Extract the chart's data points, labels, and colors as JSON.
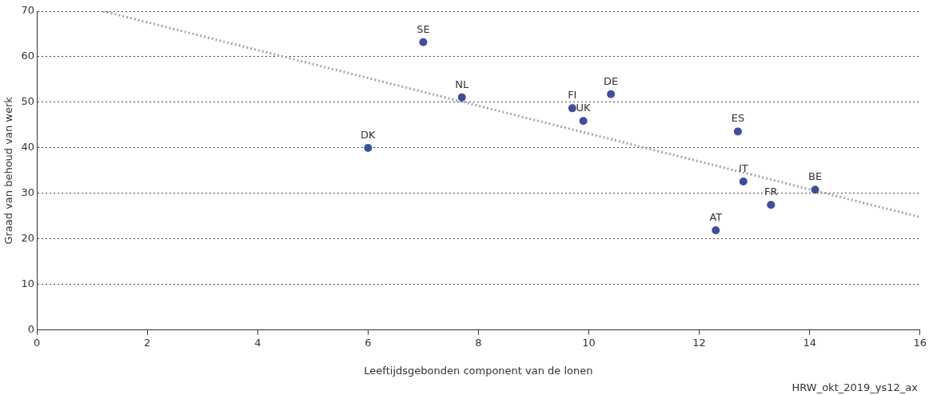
{
  "chart_data": {
    "type": "scatter",
    "xlabel": "Leeftijdsgebonden component van de lonen",
    "ylabel": "Graad van behoud van werk",
    "xlim": [
      0,
      16
    ],
    "xticks": [
      0,
      2,
      4,
      6,
      8,
      10,
      12,
      14,
      16
    ],
    "ylim": [
      0,
      70
    ],
    "yticks": [
      0,
      10,
      20,
      30,
      40,
      50,
      60,
      70
    ],
    "grid": "y",
    "legend": false,
    "marker": "circle",
    "series": [
      {
        "color": "#3c4f9b",
        "x": [
          7.0,
          7.7,
          6.0,
          9.7,
          9.9,
          10.4,
          12.7,
          12.8,
          14.1,
          13.3,
          12.3
        ],
        "values": [
          63.2,
          51.1,
          40.0,
          48.7,
          45.9,
          51.8,
          43.6,
          32.6,
          30.8,
          27.5,
          21.9
        ]
      },
      {
        "type": "line",
        "color": "#a6a6a6",
        "line_style": "dotted",
        "marker": "none",
        "x": [
          1.2,
          16
        ],
        "values": [
          70,
          24.8
        ]
      }
    ],
    "annotations": [
      {
        "text": "SE",
        "x": 7.0,
        "y": 63.2
      },
      {
        "text": "NL",
        "x": 7.7,
        "y": 51.1
      },
      {
        "text": "DK",
        "x": 6.0,
        "y": 40.0
      },
      {
        "text": "FI",
        "x": 9.7,
        "y": 48.7
      },
      {
        "text": "UK",
        "x": 9.9,
        "y": 45.9
      },
      {
        "text": "DE",
        "x": 10.4,
        "y": 51.8
      },
      {
        "text": "ES",
        "x": 12.7,
        "y": 43.6
      },
      {
        "text": "IT",
        "x": 12.8,
        "y": 32.6
      },
      {
        "text": "BE",
        "x": 14.1,
        "y": 30.8
      },
      {
        "text": "FR",
        "x": 13.3,
        "y": 27.5
      },
      {
        "text": "AT",
        "x": 12.3,
        "y": 21.9
      },
      "HRW_okt_2019_ys12_ax"
    ]
  }
}
